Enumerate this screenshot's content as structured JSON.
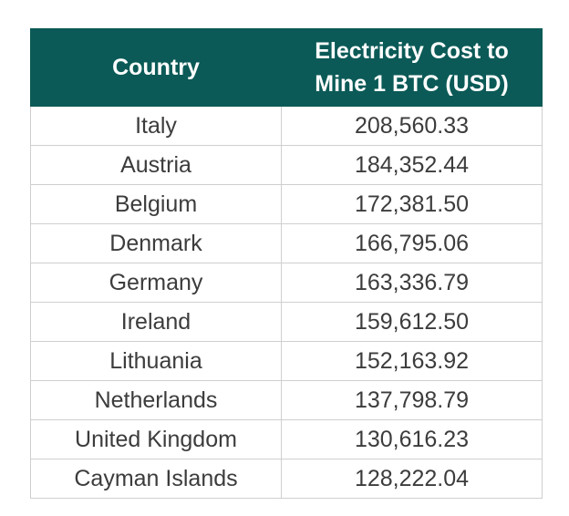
{
  "chart_data": {
    "type": "table",
    "columns": [
      "Country",
      "Electricity Cost to Mine 1 BTC (USD)"
    ],
    "rows": [
      [
        "Italy",
        "208,560.33"
      ],
      [
        "Austria",
        "184,352.44"
      ],
      [
        "Belgium",
        "172,381.50"
      ],
      [
        "Denmark",
        "166,795.06"
      ],
      [
        "Germany",
        "163,336.79"
      ],
      [
        "Ireland",
        "159,612.50"
      ],
      [
        "Lithuania",
        "152,163.92"
      ],
      [
        "Netherlands",
        "137,798.79"
      ],
      [
        "United Kingdom",
        "130,616.23"
      ],
      [
        "Cayman Islands",
        "128,222.04"
      ]
    ]
  },
  "colors": {
    "header_bg": "#0b5a57",
    "header_text": "#ffffff",
    "cell_text": "#3c3c3c",
    "border": "#cfcfcf"
  }
}
